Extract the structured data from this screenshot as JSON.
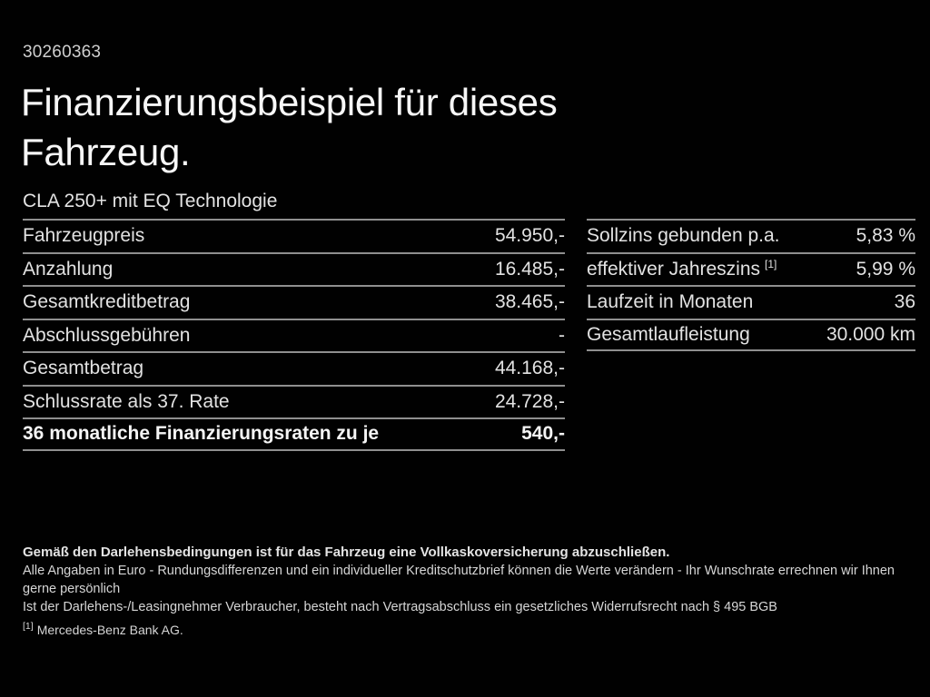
{
  "header": {
    "vehicle_id": "30260363",
    "title_line1": "Finanzierungsbeispiel für dieses",
    "title_line2": "Fahrzeug.",
    "subtitle": "CLA 250+ mit EQ Technologie"
  },
  "left_table": {
    "rows": [
      {
        "label": "Fahrzeugpreis",
        "value": "54.950,-"
      },
      {
        "label": "Anzahlung",
        "value": "16.485,-"
      },
      {
        "label": "Gesamtkreditbetrag",
        "value": "38.465,-"
      },
      {
        "label": "Abschlussgebühren",
        "value": "-"
      },
      {
        "label": "Gesamtbetrag",
        "value": "44.168,-"
      },
      {
        "label": "Schlussrate als 37. Rate",
        "value": "24.728,-"
      },
      {
        "label": "36 monatliche Finanzierungsraten zu je",
        "value": "540,-"
      }
    ]
  },
  "right_table": {
    "rows": [
      {
        "label": "Sollzins gebunden p.a.",
        "sup": "",
        "value": "5,83 %"
      },
      {
        "label": "effektiver Jahreszins",
        "sup": "[1]",
        "value": "5,99 %"
      },
      {
        "label": "Laufzeit in Monaten",
        "sup": "",
        "value": "36"
      },
      {
        "label": "Gesamtlaufleistung",
        "sup": "",
        "value": "30.000 km"
      }
    ]
  },
  "footer": {
    "bold_note": "Gemäß den Darlehensbedingungen ist für das Fahrzeug eine Vollkaskoversicherung abzuschließen.",
    "note2": "Alle Angaben in Euro - Rundungsdifferenzen und ein individueller Kreditschutzbrief können die Werte verändern - Ihr Wunschrate errechnen wir Ihnen gerne persönlich",
    "note3": "Ist der Darlehens-/Leasingnehmer Verbraucher, besteht nach Vertragsabschluss ein gesetzliches Widerrufsrecht nach § 495 BGB",
    "footnote_marker": "[1]",
    "footnote_text": "Mercedes-Benz Bank AG."
  },
  "colors": {
    "background": "#010101",
    "text": "#e2e2e2",
    "heading": "#f7f7f7",
    "divider": "#8f8f8f"
  }
}
